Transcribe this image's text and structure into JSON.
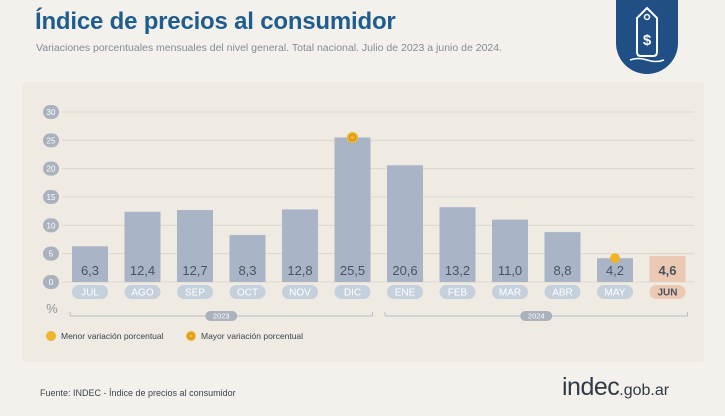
{
  "header": {
    "title": "Índice de precios al consumidor",
    "subtitle": "Variaciones porcentuales mensuales del nivel general. Total nacional. Julio de 2023 a junio de 2024."
  },
  "footer": {
    "source": "Fuente: INDEC - Índice de precios al consumidor",
    "logo_main": "indec",
    "logo_suffix": ".gob.ar"
  },
  "legend": {
    "min_label": "Menor variación porcentual",
    "max_label": "Mayor variación porcentual"
  },
  "colors": {
    "bar": "#a9b5c6",
    "bar_highlight": "#ecc9b2",
    "label_box": "#c5d0dd",
    "label_box_highlight": "#ecc9b2",
    "marker": "#f1b428",
    "title": "#1f5d8f",
    "badge": "#1f4f85"
  },
  "chart_data": {
    "type": "bar",
    "title": "Índice de precios al consumidor",
    "subtitle": "Variaciones porcentuales mensuales del nivel general. Total nacional. Julio de 2023 a junio de 2024.",
    "categories": [
      "JUL",
      "AGO",
      "SEP",
      "OCT",
      "NOV",
      "DIC",
      "ENE",
      "FEB",
      "MAR",
      "ABR",
      "MAY",
      "JUN"
    ],
    "values": [
      6.3,
      12.4,
      12.7,
      8.3,
      12.8,
      25.5,
      20.6,
      13.2,
      11.0,
      8.8,
      4.2,
      4.6
    ],
    "value_labels": [
      "6,3",
      "12,4",
      "12,7",
      "8,3",
      "12,8",
      "25,5",
      "20,6",
      "13,2",
      "11,0",
      "8,8",
      "4,2",
      "4,6"
    ],
    "yticks": [
      0,
      5,
      10,
      15,
      20,
      25,
      30
    ],
    "ylim": [
      0,
      30
    ],
    "ylabel": "%",
    "grid": true,
    "highlight_category": "JUN",
    "max_marker_category": "DIC",
    "min_marker_category": "MAY",
    "year_groups": [
      {
        "label": "2023",
        "categories": [
          "JUL",
          "AGO",
          "SEP",
          "OCT",
          "NOV",
          "DIC"
        ]
      },
      {
        "label": "2024",
        "categories": [
          "ENE",
          "FEB",
          "MAR",
          "ABR",
          "MAY",
          "JUN"
        ]
      }
    ],
    "legend_position": "bottom-left"
  }
}
